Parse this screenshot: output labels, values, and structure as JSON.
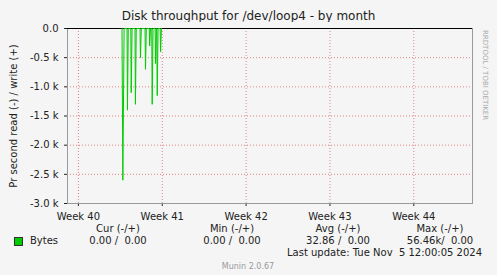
{
  "chart_data": {
    "type": "line",
    "title": "Disk throughput for /dev/loop4 - by month",
    "y_label": "Pr second read (-) / write (+)",
    "x": [
      40.52,
      40.53,
      40.545,
      40.58,
      40.585,
      40.595,
      40.625,
      40.63,
      40.64,
      40.675,
      40.68,
      40.69,
      40.735,
      40.74,
      40.75,
      40.795,
      40.8,
      40.81,
      40.845,
      40.85,
      40.86,
      40.875,
      40.88,
      40.89,
      40.915,
      40.92,
      40.93,
      40.935,
      40.94,
      40.95,
      40.975,
      40.98,
      40.99
    ],
    "series": [
      {
        "name": "Bytes",
        "color": "#00cc00",
        "values": [
          0,
          -2600,
          0,
          0,
          -1400,
          0,
          0,
          -1100,
          0,
          0,
          -1300,
          0,
          0,
          -500,
          0,
          0,
          -700,
          0,
          0,
          -300,
          0,
          0,
          -1300,
          0,
          0,
          -600,
          0,
          0,
          -1150,
          0,
          0,
          -400,
          0
        ]
      }
    ],
    "xlim": [
      39.87,
      44.7
    ],
    "xticks": [
      {
        "value": 40,
        "label": "Week 40"
      },
      {
        "value": 41,
        "label": "Week 41"
      },
      {
        "value": 42,
        "label": "Week 42"
      },
      {
        "value": 43,
        "label": "Week 43"
      },
      {
        "value": 44,
        "label": "Week 44"
      }
    ],
    "ylim": [
      -3000,
      0
    ],
    "yticks": [
      {
        "value": 0,
        "label": "0.0"
      },
      {
        "value": -500,
        "label": "-0.5 k"
      },
      {
        "value": -1000,
        "label": "-1.0 k"
      },
      {
        "value": -1500,
        "label": "-1.5 k"
      },
      {
        "value": -2000,
        "label": "-2.0 k"
      },
      {
        "value": -2500,
        "label": "-2.5 k"
      },
      {
        "value": -3000,
        "label": "-3.0 k"
      }
    ],
    "grid": true,
    "summary": {
      "headers": [
        "Cur (-/+)",
        "Min (-/+)",
        "Avg (-/+)",
        "Max (-/+)"
      ],
      "rows": [
        {
          "name": "Bytes",
          "cells": [
            "0.00 /  0.00",
            "0.00 /  0.00",
            "32.86 /  0.00",
            "56.46k/  0.00"
          ]
        }
      ]
    },
    "footer": "Last update: Tue Nov  5 12:00:05 2024",
    "credit": "Munin 2.0.67",
    "side_text": "RRDTOOL / TOBI OETIKER"
  }
}
